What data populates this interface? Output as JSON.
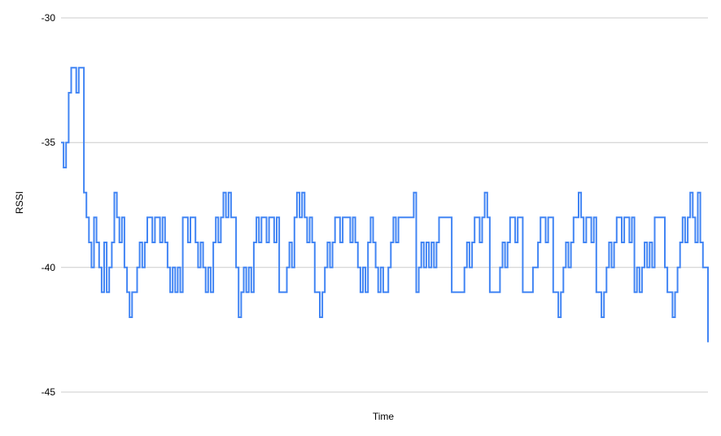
{
  "chart_data": {
    "type": "line",
    "title": "",
    "xlabel": "Time",
    "ylabel": "RSSI",
    "x_tick_labels": [],
    "y_ticks": [
      -30,
      -35,
      -40,
      -45
    ],
    "y_tick_labels": [
      "-30",
      "-35",
      "-40",
      "-45"
    ],
    "ylim": [
      -45,
      -30
    ],
    "grid": "horizontal",
    "legend_position": "none",
    "colors": {
      "line": "#4285f4",
      "gridline": "#cccccc",
      "text": "#000000",
      "background": "#ffffff"
    },
    "series": [
      {
        "name": "RSSI",
        "color": "#4285f4",
        "values": [
          -35,
          -36,
          -35,
          -33,
          -32,
          -32,
          -33,
          -32,
          -32,
          -37,
          -38,
          -39,
          -40,
          -38,
          -39,
          -40,
          -41,
          -39,
          -41,
          -40,
          -39,
          -37,
          -38,
          -39,
          -38,
          -40,
          -41,
          -42,
          -41,
          -41,
          -40,
          -39,
          -40,
          -39,
          -38,
          -38,
          -39,
          -38,
          -38,
          -39,
          -38,
          -39,
          -40,
          -41,
          -40,
          -41,
          -40,
          -41,
          -38,
          -38,
          -39,
          -38,
          -38,
          -39,
          -40,
          -39,
          -40,
          -41,
          -40,
          -41,
          -39,
          -38,
          -39,
          -38,
          -37,
          -38,
          -37,
          -38,
          -38,
          -40,
          -42,
          -41,
          -40,
          -41,
          -40,
          -41,
          -39,
          -38,
          -39,
          -38,
          -38,
          -39,
          -38,
          -38,
          -39,
          -38,
          -41,
          -41,
          -41,
          -40,
          -39,
          -40,
          -38,
          -37,
          -38,
          -37,
          -38,
          -39,
          -38,
          -39,
          -41,
          -41,
          -42,
          -41,
          -40,
          -39,
          -40,
          -39,
          -38,
          -38,
          -39,
          -38,
          -38,
          -38,
          -39,
          -38,
          -39,
          -40,
          -41,
          -40,
          -41,
          -39,
          -38,
          -39,
          -40,
          -41,
          -40,
          -41,
          -41,
          -40,
          -39,
          -38,
          -39,
          -38,
          -38,
          -38,
          -38,
          -38,
          -38,
          -37,
          -41,
          -40,
          -39,
          -40,
          -39,
          -40,
          -39,
          -40,
          -39,
          -38,
          -38,
          -38,
          -38,
          -38,
          -41,
          -41,
          -41,
          -41,
          -41,
          -40,
          -39,
          -40,
          -39,
          -38,
          -38,
          -39,
          -38,
          -37,
          -38,
          -41,
          -41,
          -41,
          -41,
          -40,
          -39,
          -40,
          -39,
          -38,
          -38,
          -39,
          -38,
          -38,
          -41,
          -41,
          -41,
          -41,
          -40,
          -40,
          -39,
          -38,
          -38,
          -39,
          -38,
          -38,
          -41,
          -41,
          -42,
          -41,
          -40,
          -39,
          -40,
          -39,
          -38,
          -38,
          -37,
          -38,
          -39,
          -38,
          -38,
          -39,
          -38,
          -41,
          -41,
          -42,
          -41,
          -40,
          -39,
          -40,
          -39,
          -38,
          -38,
          -39,
          -38,
          -38,
          -39,
          -38,
          -41,
          -40,
          -41,
          -40,
          -39,
          -40,
          -39,
          -40,
          -38,
          -38,
          -38,
          -38,
          -40,
          -41,
          -41,
          -42,
          -41,
          -40,
          -39,
          -38,
          -39,
          -38,
          -37,
          -38,
          -39,
          -37,
          -39,
          -40,
          -40,
          -43
        ]
      }
    ]
  }
}
